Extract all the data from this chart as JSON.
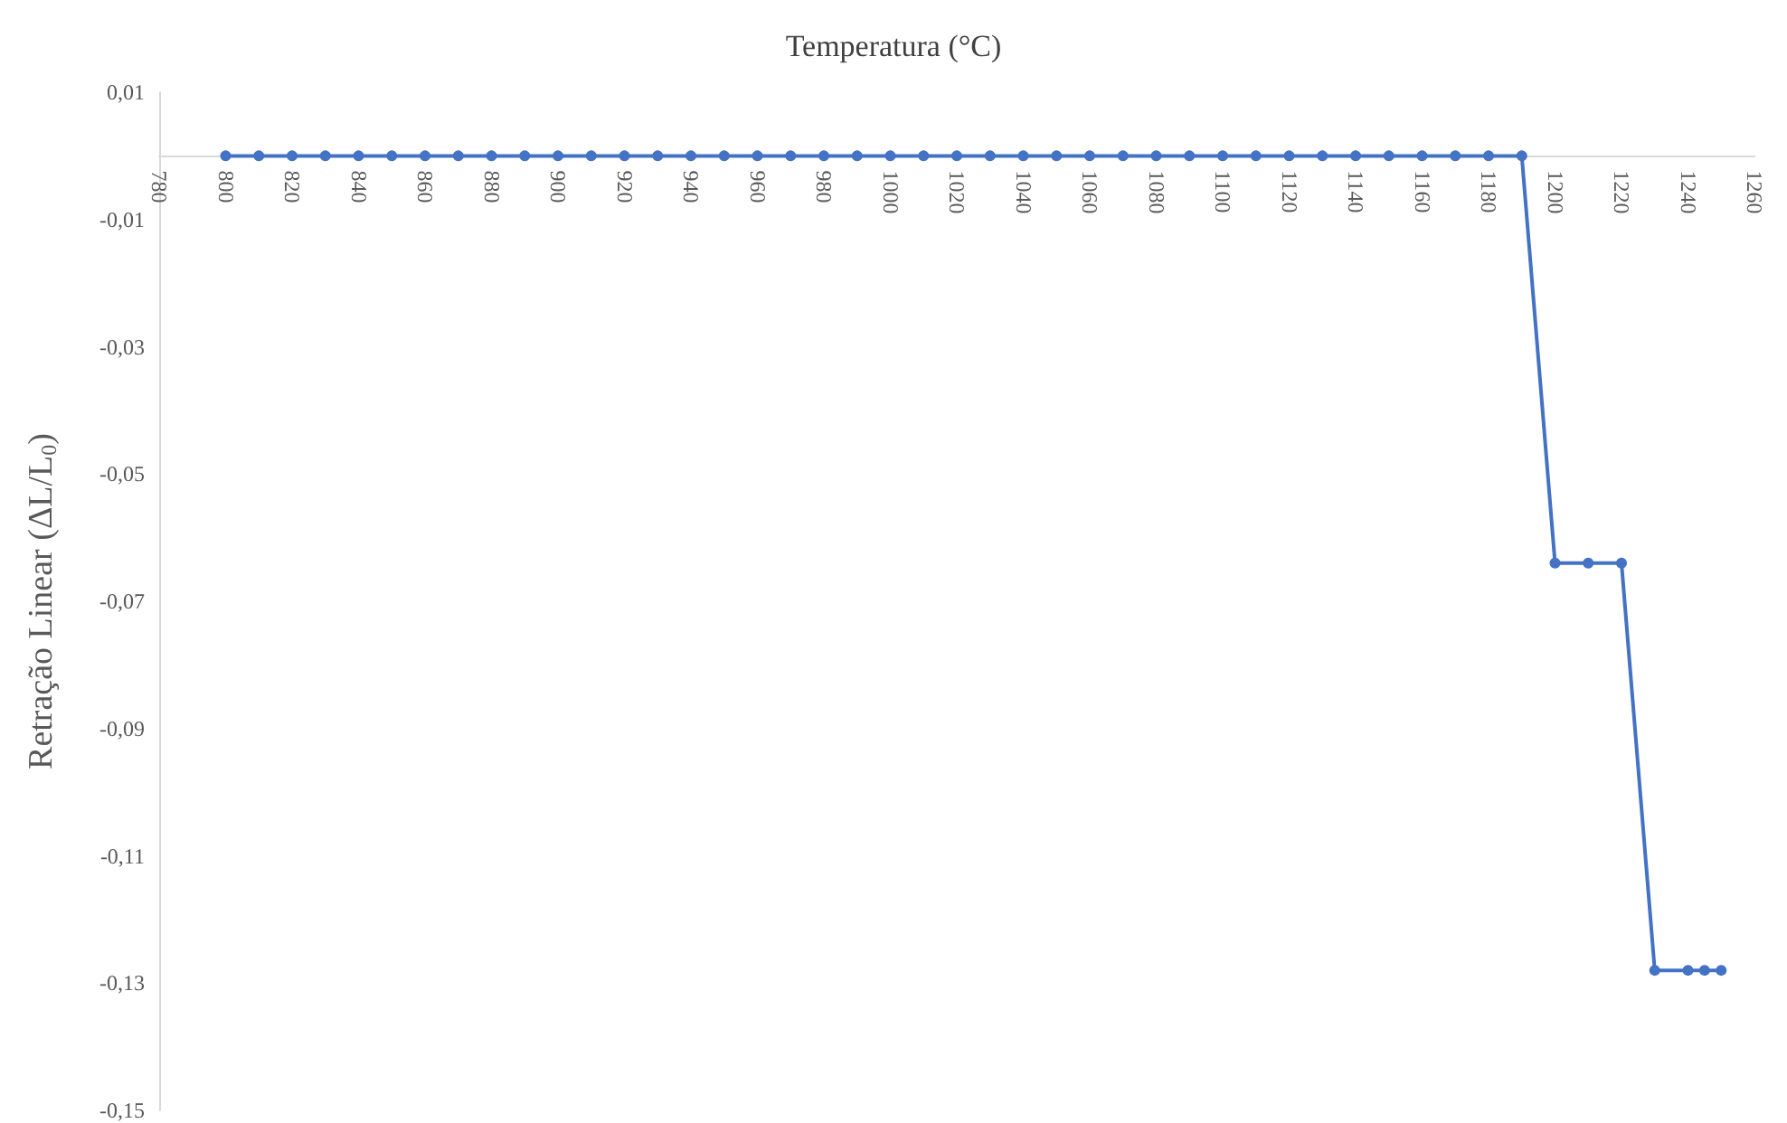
{
  "chart_data": {
    "type": "line",
    "xlabel": "Temperatura (°C)",
    "ylabel": "Retração Linear (ΔL/L$_{0}$)",
    "x": [
      800,
      810,
      820,
      830,
      840,
      850,
      860,
      870,
      880,
      890,
      900,
      910,
      920,
      930,
      940,
      950,
      960,
      970,
      980,
      990,
      1000,
      1010,
      1020,
      1030,
      1040,
      1050,
      1060,
      1070,
      1080,
      1090,
      1100,
      1110,
      1120,
      1130,
      1140,
      1150,
      1160,
      1170,
      1180,
      1190,
      1200,
      1210,
      1220,
      1230,
      1240,
      1245,
      1250
    ],
    "series": [
      {
        "color": "#4472c4",
        "values": [
          0,
          0,
          0,
          0,
          0,
          0,
          0,
          0,
          0,
          0,
          0,
          0,
          0,
          0,
          0,
          0,
          0,
          0,
          0,
          0,
          0,
          0,
          0,
          0,
          0,
          0,
          0,
          0,
          0,
          0,
          0,
          0,
          0,
          0,
          0,
          0,
          0,
          0,
          0,
          0,
          -0.064,
          -0.064,
          -0.064,
          -0.128,
          -0.128,
          -0.128,
          -0.128
        ]
      }
    ],
    "xlim": [
      780,
      1260
    ],
    "xticks": [
      780,
      800,
      820,
      840,
      860,
      880,
      900,
      920,
      940,
      960,
      980,
      1000,
      1020,
      1040,
      1060,
      1080,
      1100,
      1120,
      1140,
      1160,
      1180,
      1200,
      1220,
      1240,
      1260
    ],
    "ylim": [
      -0.15,
      0.01
    ],
    "yticks": [
      {
        "value": 0.01,
        "label": "0,01"
      },
      {
        "value": -0.01,
        "label": "-0,01"
      },
      {
        "value": -0.03,
        "label": "-0,03"
      },
      {
        "value": -0.05,
        "label": "-0,05"
      },
      {
        "value": -0.07,
        "label": "-0,07"
      },
      {
        "value": -0.09,
        "label": "-0,09"
      },
      {
        "value": -0.11,
        "label": "-0,11"
      },
      {
        "value": -0.13,
        "label": "-0,13"
      },
      {
        "value": -0.15,
        "label": "-0,15"
      }
    ],
    "grid": false,
    "marker": "circle",
    "line_style": "solid"
  }
}
